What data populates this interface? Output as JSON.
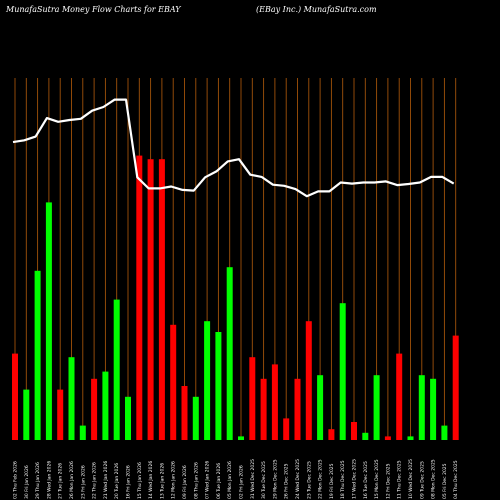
{
  "header": {
    "left_title": "MunafaSutra  Money Flow  Charts for EBAY",
    "right_title": "(EBay Inc.) MunafaSutra.com"
  },
  "colors": {
    "background": "#000000",
    "grid": "#a0520a",
    "up": "#00ff00",
    "down": "#ff0000",
    "line": "#ffffff"
  },
  "chart_data": {
    "type": "bar",
    "title": "MunafaSutra  Money Flow  Charts for EBAY",
    "subtitle": "(EBay Inc.) MunafaSutra.com",
    "bar_scale_max": 100,
    "line_scale_max": 100,
    "dates": [
      "02 Thu Feb 2026",
      "30 Fri Jan 2026",
      "29 Thu Jan 2026",
      "28 Wed Jan 2026",
      "27 Tue Jan 2026",
      "26 Mon Jan 2026",
      "23 Fri Jan 2026",
      "22 Thu Jan 2026",
      "21 Wed Jan 2026",
      "20 Tue Jan 2026",
      "16 Fri Jan 2026",
      "15 Thu Jan 2026",
      "14 Wed Jan 2026",
      "13 Tue Jan 2026",
      "12 Mon Jan 2026",
      "09 Fri Jan 2026",
      "08 Thu Jan 2026",
      "07 Wed Jan 2026",
      "06 Tue Jan 2026",
      "05 Mon Jan 2026",
      "02 Fri Jan 2026",
      "31 Wed Dec 2025",
      "30 Tue Dec 2025",
      "29 Mon Dec 2025",
      "26 Fri Dec 2025",
      "24 Wed Dec 2025",
      "23 Tue Dec 2025",
      "22 Mon Dec 2025",
      "19 Fri Dec 2025",
      "18 Thu Dec 2025",
      "17 Wed Dec 2025",
      "16 Tue Dec 2025",
      "15 Mon Dec 2025",
      "12 Fri Dec 2025",
      "11 Thu Dec 2025",
      "10 Wed Dec 2025",
      "09 Tue Dec 2025",
      "08 Mon Dec 2025",
      "05 Fri Dec 2025",
      "04 Thu Dec 2025"
    ],
    "bars": [
      {
        "value": 24,
        "dir": "down"
      },
      {
        "value": 14,
        "dir": "up"
      },
      {
        "value": 47,
        "dir": "up"
      },
      {
        "value": 66,
        "dir": "up"
      },
      {
        "value": 14,
        "dir": "down"
      },
      {
        "value": 23,
        "dir": "up"
      },
      {
        "value": 4,
        "dir": "up"
      },
      {
        "value": 17,
        "dir": "down"
      },
      {
        "value": 19,
        "dir": "up"
      },
      {
        "value": 39,
        "dir": "up"
      },
      {
        "value": 12,
        "dir": "up"
      },
      {
        "value": 79,
        "dir": "down"
      },
      {
        "value": 78,
        "dir": "down"
      },
      {
        "value": 78,
        "dir": "down"
      },
      {
        "value": 32,
        "dir": "down"
      },
      {
        "value": 15,
        "dir": "down"
      },
      {
        "value": 12,
        "dir": "up"
      },
      {
        "value": 33,
        "dir": "up"
      },
      {
        "value": 30,
        "dir": "up"
      },
      {
        "value": 48,
        "dir": "up"
      },
      {
        "value": 1,
        "dir": "up"
      },
      {
        "value": 23,
        "dir": "down"
      },
      {
        "value": 17,
        "dir": "down"
      },
      {
        "value": 21,
        "dir": "down"
      },
      {
        "value": 6,
        "dir": "down"
      },
      {
        "value": 17,
        "dir": "down"
      },
      {
        "value": 33,
        "dir": "down"
      },
      {
        "value": 18,
        "dir": "up"
      },
      {
        "value": 3,
        "dir": "down"
      },
      {
        "value": 38,
        "dir": "up"
      },
      {
        "value": 5,
        "dir": "down"
      },
      {
        "value": 2,
        "dir": "up"
      },
      {
        "value": 18,
        "dir": "up"
      },
      {
        "value": 1,
        "dir": "down"
      },
      {
        "value": 24,
        "dir": "down"
      },
      {
        "value": 1,
        "dir": "up"
      },
      {
        "value": 18,
        "dir": "up"
      },
      {
        "value": 17,
        "dir": "up"
      },
      {
        "value": 4,
        "dir": "up"
      },
      {
        "value": 29,
        "dir": "down"
      }
    ],
    "line": [
      80.5,
      81,
      82,
      87,
      86,
      86.5,
      86.8,
      89,
      90,
      92,
      92,
      71,
      68,
      68,
      68.5,
      67.6,
      67.4,
      71,
      72.6,
      75.3,
      75.9,
      71.7,
      71.1,
      69,
      68.7,
      67.8,
      65.9,
      67.2,
      67.2,
      69.6,
      69.3,
      69.6,
      69.6,
      69.9,
      68.9,
      69.2,
      69.6,
      71.1,
      71.1,
      69.3
    ],
    "grid": true
  }
}
